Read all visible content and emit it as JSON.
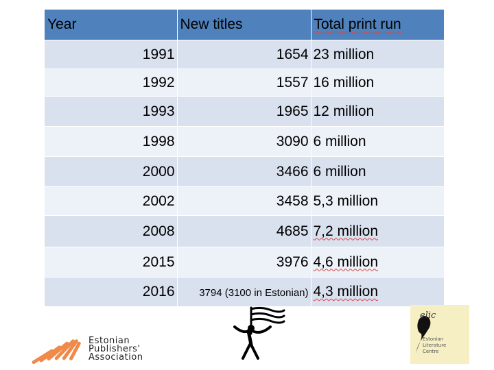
{
  "table": {
    "headers": [
      "Year",
      "New titles",
      "Total print run"
    ],
    "rows": [
      {
        "year": "1991",
        "titles": "1654",
        "print": "23 million"
      },
      {
        "year": "1992",
        "titles": "1557",
        "print": "16 million"
      },
      {
        "year": "1993",
        "titles": "1965",
        "print": "12 million"
      },
      {
        "year": "1998",
        "titles": "3090",
        "print": "6 million"
      },
      {
        "year": "2000",
        "titles": "3466",
        "print": "6 million"
      },
      {
        "year": "2002",
        "titles": "3458",
        "print": "5,3 million"
      },
      {
        "year": "2008",
        "titles": "4685",
        "print": "7,2 million"
      },
      {
        "year": "2015",
        "titles": "3976",
        "print": "4,6 million"
      },
      {
        "year": "2016",
        "titles": "3794 (3100 in Estonian)",
        "print": "4,3 million"
      }
    ]
  },
  "logos": {
    "publishers": [
      "Estonian",
      "Publishers'",
      "Association"
    ],
    "elic_word": "elic",
    "elic_lines": [
      "Estonian",
      "Literature",
      "Centre"
    ]
  },
  "colors": {
    "header": "#4f81bd",
    "row_a": "#d9e1ef",
    "row_b": "#edf1f8",
    "logo_orange": "#ef8a4a",
    "elic_bg": "#f6efc4"
  }
}
